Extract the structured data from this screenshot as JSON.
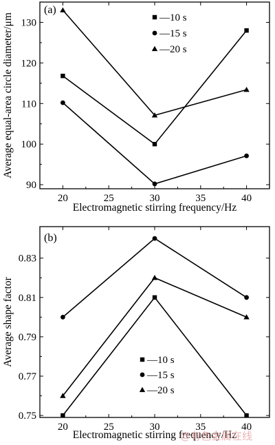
{
  "chart_data": [
    {
      "type": "line",
      "panel_label": "(a)",
      "xlabel": "Electromagnetic stirring frequency/Hz",
      "ylabel": "Average equal-area circle diameter/μm",
      "x": [
        20,
        30,
        40
      ],
      "xlim": [
        17.5,
        42.5
      ],
      "ylim": [
        89,
        135
      ],
      "xticks": [
        20,
        25,
        30,
        35,
        40
      ],
      "yticks": [
        90,
        100,
        110,
        120,
        130
      ],
      "grid": false,
      "legend_position": "top-center",
      "series": [
        {
          "name": "10 s",
          "marker": "square",
          "values": [
            116.8,
            100,
            128
          ]
        },
        {
          "name": "15 s",
          "marker": "circle",
          "values": [
            110.2,
            90.2,
            97.1
          ]
        },
        {
          "name": "20 s",
          "marker": "triangle",
          "values": [
            133,
            107.1,
            113.4
          ]
        }
      ]
    },
    {
      "type": "line",
      "panel_label": "(b)",
      "xlabel": "Electromagnetic stirring frequency/Hz",
      "ylabel": "Average shape factor",
      "x": [
        20,
        30,
        40
      ],
      "xlim": [
        17.5,
        42.5
      ],
      "ylim": [
        0.749,
        0.846
      ],
      "xticks": [
        20,
        25,
        30,
        35,
        40
      ],
      "yticks": [
        0.75,
        0.77,
        0.79,
        0.81,
        0.83
      ],
      "grid": false,
      "legend_position": "bottom-center",
      "series": [
        {
          "name": "10 s",
          "marker": "square",
          "values": [
            0.75,
            0.81,
            0.75
          ]
        },
        {
          "name": "15 s",
          "marker": "circle",
          "values": [
            0.8,
            0.84,
            0.81
          ]
        },
        {
          "name": "20 s",
          "marker": "triangle",
          "values": [
            0.76,
            0.82,
            0.8
          ]
        }
      ]
    }
  ],
  "legend_dash": "—",
  "watermark": "@有色金属在线"
}
